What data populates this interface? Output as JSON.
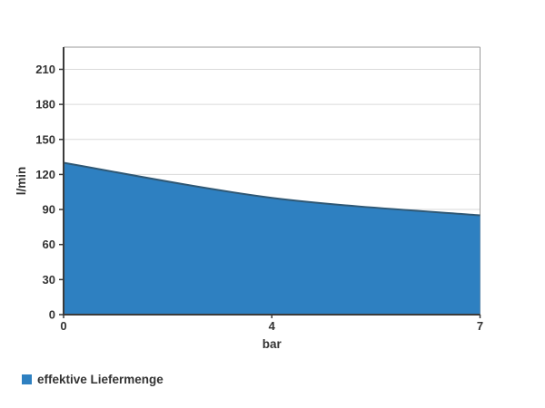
{
  "chart_data": {
    "type": "area",
    "title": "",
    "xlabel": "bar",
    "ylabel": "l/min",
    "categories": [
      0,
      4,
      7
    ],
    "series": [
      {
        "name": "effektive Liefermenge",
        "values": [
          130,
          100,
          85
        ],
        "fill_color": "#2e80c1",
        "line_color": "#2f5875"
      }
    ],
    "yticks": [
      0,
      30,
      60,
      90,
      120,
      150,
      180,
      210
    ],
    "xticks": [
      0,
      4,
      7
    ],
    "ylim": [
      0,
      229
    ],
    "grid": true,
    "smooth": true,
    "legend_position": "bottom-left"
  },
  "legend": {
    "items": [
      {
        "label": "effektive Liefermenge",
        "color": "#2e80c1"
      }
    ]
  },
  "colors": {
    "background": "#ffffff",
    "grid": "#dadada",
    "plot_border": "#9a9a9a",
    "axis": "#3b3b3b",
    "text": "#333333"
  }
}
